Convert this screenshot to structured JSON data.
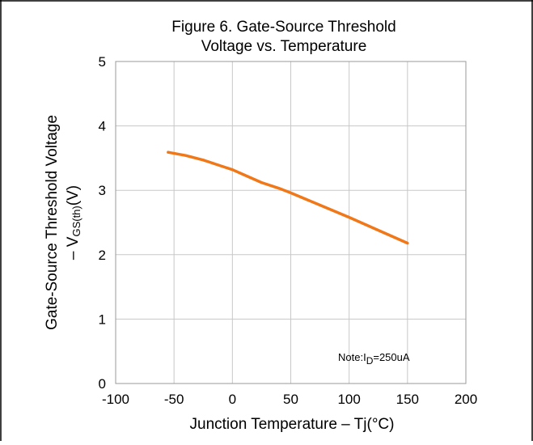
{
  "chart_data": {
    "type": "line",
    "title_lines": [
      "Figure 6. Gate-Source Threshold",
      "Voltage vs. Temperature"
    ],
    "xlabel": "Junction Temperature – Tj(°C)",
    "ylabel": {
      "line1": "Gate-Source Threshold Voltage",
      "line2_prefix": "– V",
      "line2_sub": "GS(th)",
      "line2_suffix": "(V)"
    },
    "note": {
      "prefix": "Note:I",
      "sub": "D",
      "suffix": "=250uA"
    },
    "xlim": [
      -100,
      200
    ],
    "ylim": [
      0,
      5
    ],
    "x_ticks": [
      -100,
      -50,
      0,
      50,
      100,
      150,
      200
    ],
    "y_ticks": [
      0,
      1,
      2,
      3,
      4,
      5
    ],
    "grid": true,
    "series": [
      {
        "color": "#f07818",
        "x": [
          -55,
          -40,
          -25,
          -10,
          0,
          10,
          25,
          40,
          50,
          75,
          100,
          125,
          150
        ],
        "y": [
          3.59,
          3.54,
          3.47,
          3.38,
          3.32,
          3.24,
          3.12,
          3.03,
          2.96,
          2.77,
          2.58,
          2.38,
          2.18
        ]
      }
    ]
  }
}
